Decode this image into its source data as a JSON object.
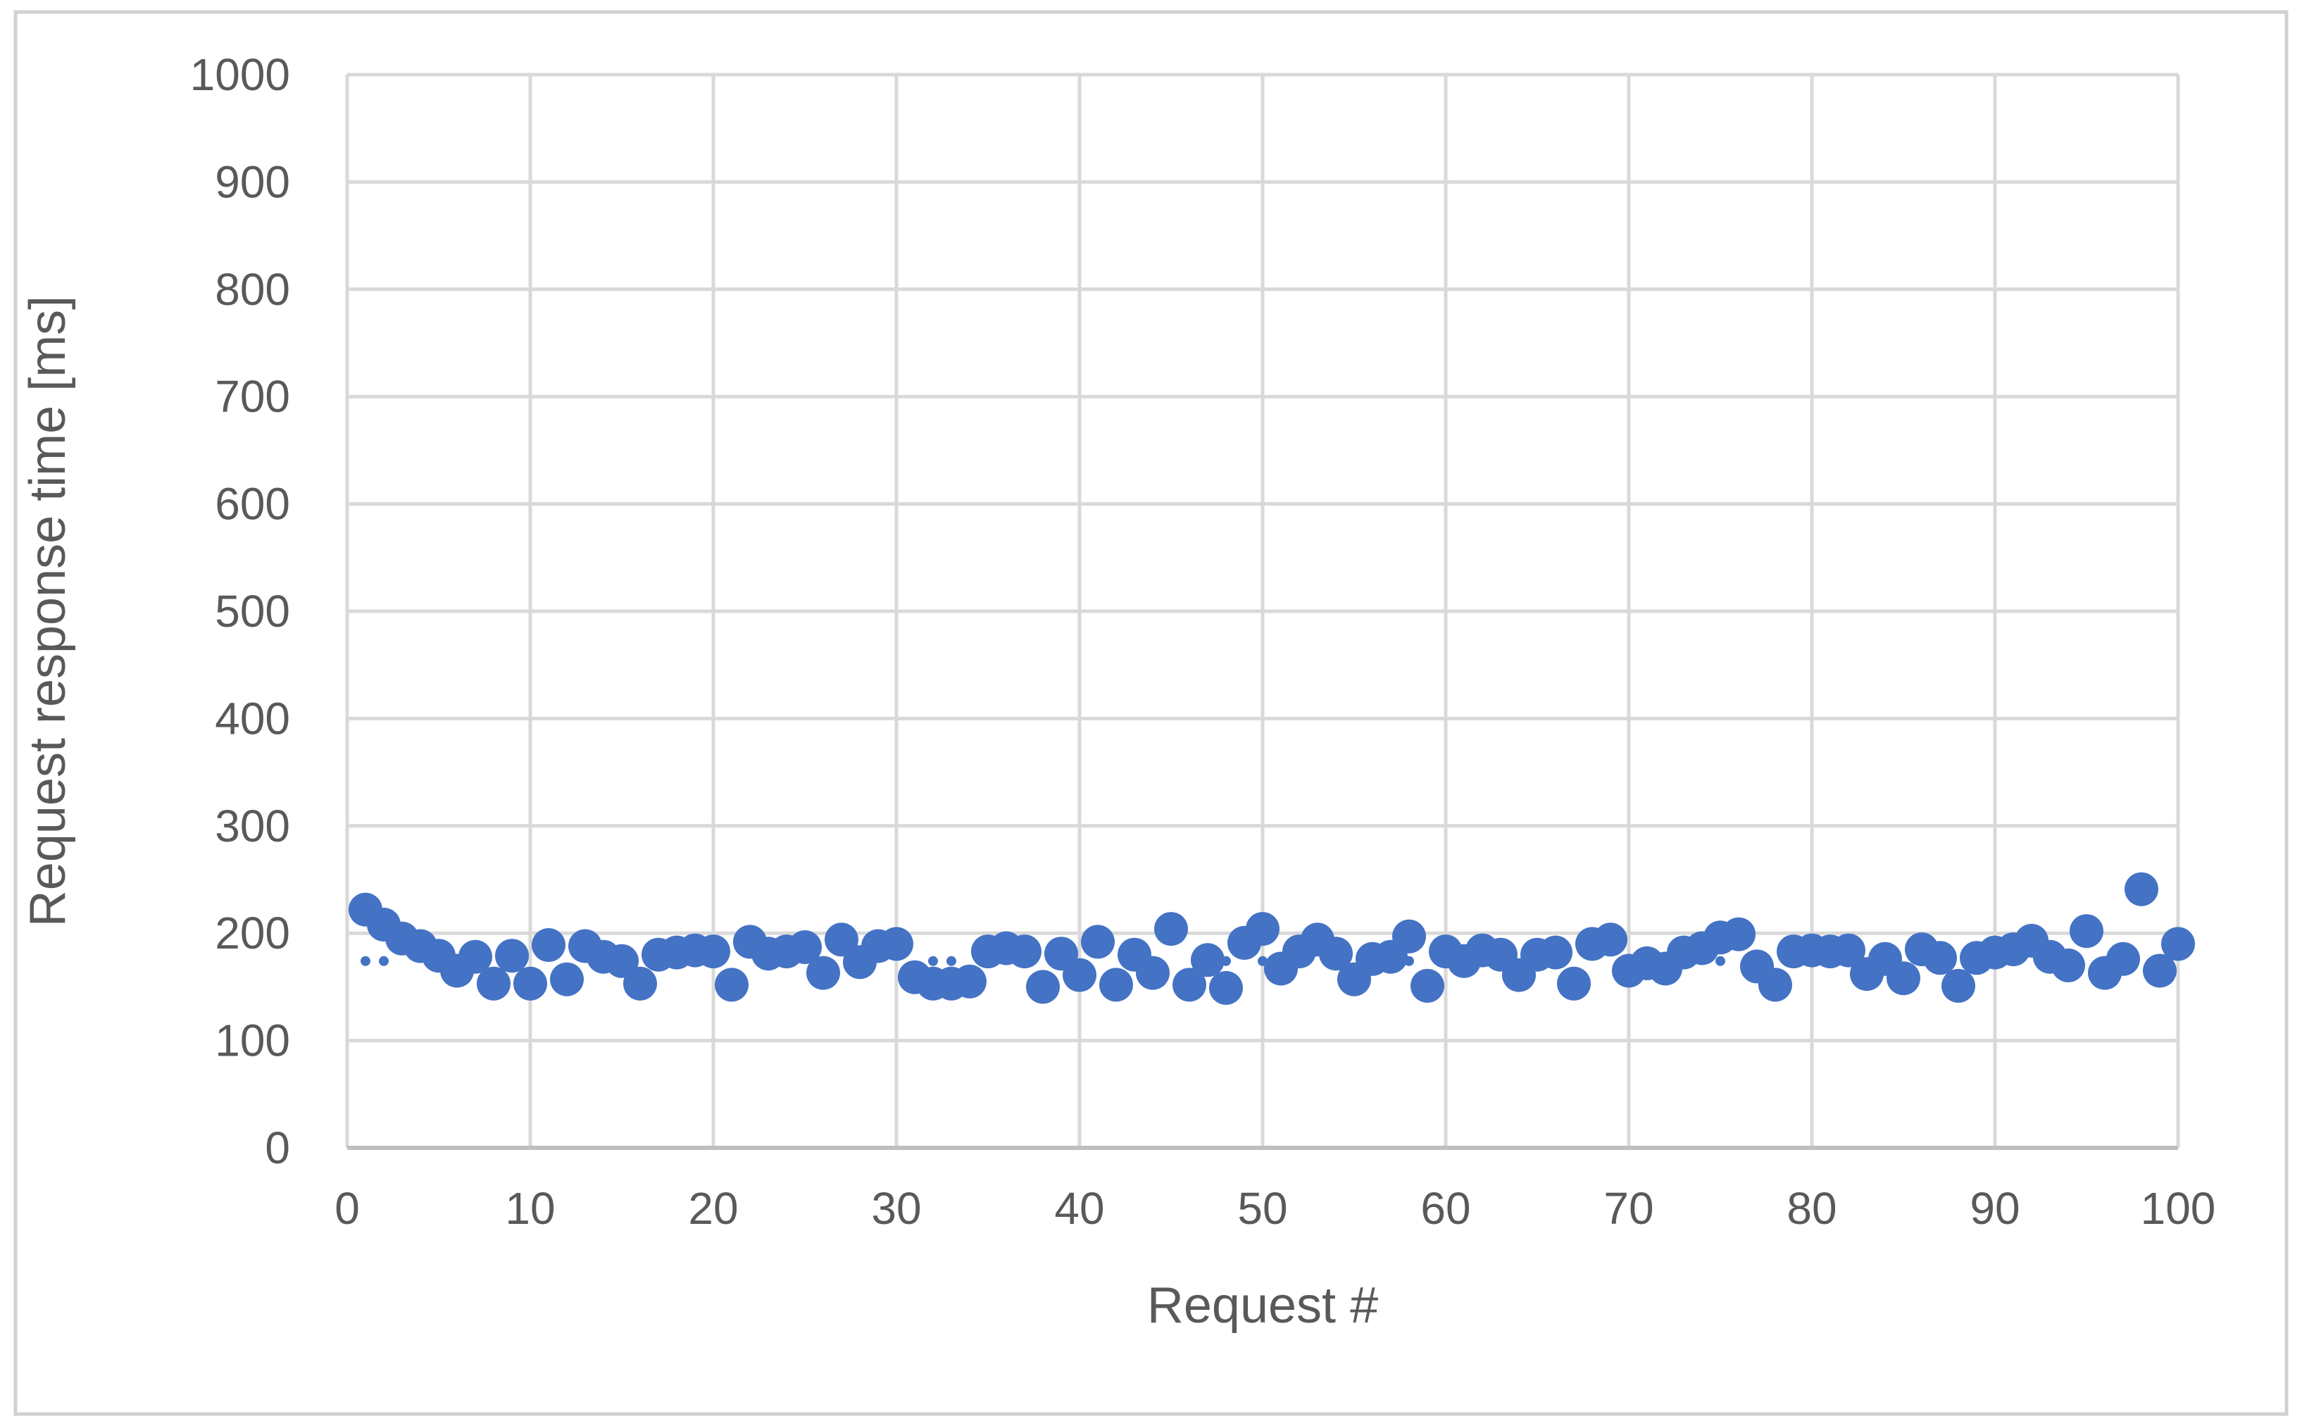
{
  "chart_data": {
    "type": "scatter",
    "title": "",
    "xlabel": "Request #",
    "ylabel": "Request response time [ms]",
    "xlim": [
      0,
      100
    ],
    "ylim": [
      0,
      1000
    ],
    "x_ticks": [
      0,
      10,
      20,
      30,
      40,
      50,
      60,
      70,
      80,
      90,
      100
    ],
    "y_ticks": [
      0,
      100,
      200,
      300,
      400,
      500,
      600,
      700,
      800,
      900,
      1000
    ],
    "grid": true,
    "legend": false,
    "series": [
      {
        "id": "response-times",
        "marker": "circle-large",
        "x_start": 1,
        "x_step": 1,
        "y": [
          222,
          208,
          195,
          188,
          179,
          165,
          178,
          153,
          179,
          153,
          189,
          157,
          188,
          178,
          174,
          153,
          180,
          182,
          184,
          183,
          152,
          192,
          181,
          183,
          187,
          163,
          194,
          173,
          188,
          190,
          159,
          153,
          153,
          155,
          183,
          186,
          183,
          150,
          181,
          161,
          192,
          152,
          180,
          163,
          204,
          152,
          175,
          149,
          191,
          204,
          167,
          183,
          194,
          181,
          157,
          176,
          178,
          197,
          151,
          183,
          174,
          184,
          180,
          161,
          180,
          182,
          153,
          190,
          194,
          165,
          172,
          167,
          182,
          186,
          196,
          199,
          169,
          152,
          183,
          184,
          183,
          184,
          162,
          176,
          158,
          185,
          177,
          151,
          177,
          182,
          185,
          193,
          178,
          170,
          202,
          163,
          176,
          241,
          165,
          190
        ]
      },
      {
        "id": "small-dots",
        "marker": "circle-small",
        "x": [
          1,
          2,
          32,
          33,
          48,
          50,
          58,
          75
        ],
        "y": [
          174,
          174,
          174,
          174,
          174,
          174,
          174,
          174
        ]
      }
    ],
    "colors": {
      "marker": "#4472C4",
      "gridline": "#D9D9D9",
      "axis_line": "#BFBFBF",
      "text": "#595959",
      "border": "#D0D0D0",
      "background": "#FFFFFF"
    }
  }
}
